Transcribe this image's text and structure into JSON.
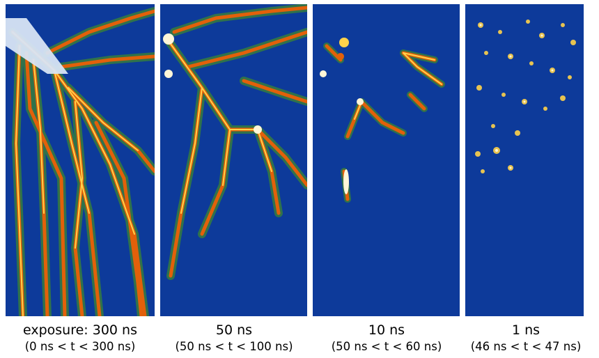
{
  "panels": [
    {
      "exposure_label": "exposure: 300 ns",
      "time_window": "(0 ns < t < 300 ns)"
    },
    {
      "exposure_label": "50 ns",
      "time_window": "(50 ns < t < 100 ns)"
    },
    {
      "exposure_label": "10 ns",
      "time_window": "(50 ns < t < 60 ns)"
    },
    {
      "exposure_label": "1 ns",
      "time_window": "(46 ns < t < 47 ns)"
    }
  ],
  "colors": {
    "background_blue": "#0d3a9a",
    "halo_green": "#3f8a2a",
    "streamer_orange": "#e2600a",
    "streamer_yellow": "#ffd24a",
    "core_white": "#fff6d8"
  }
}
